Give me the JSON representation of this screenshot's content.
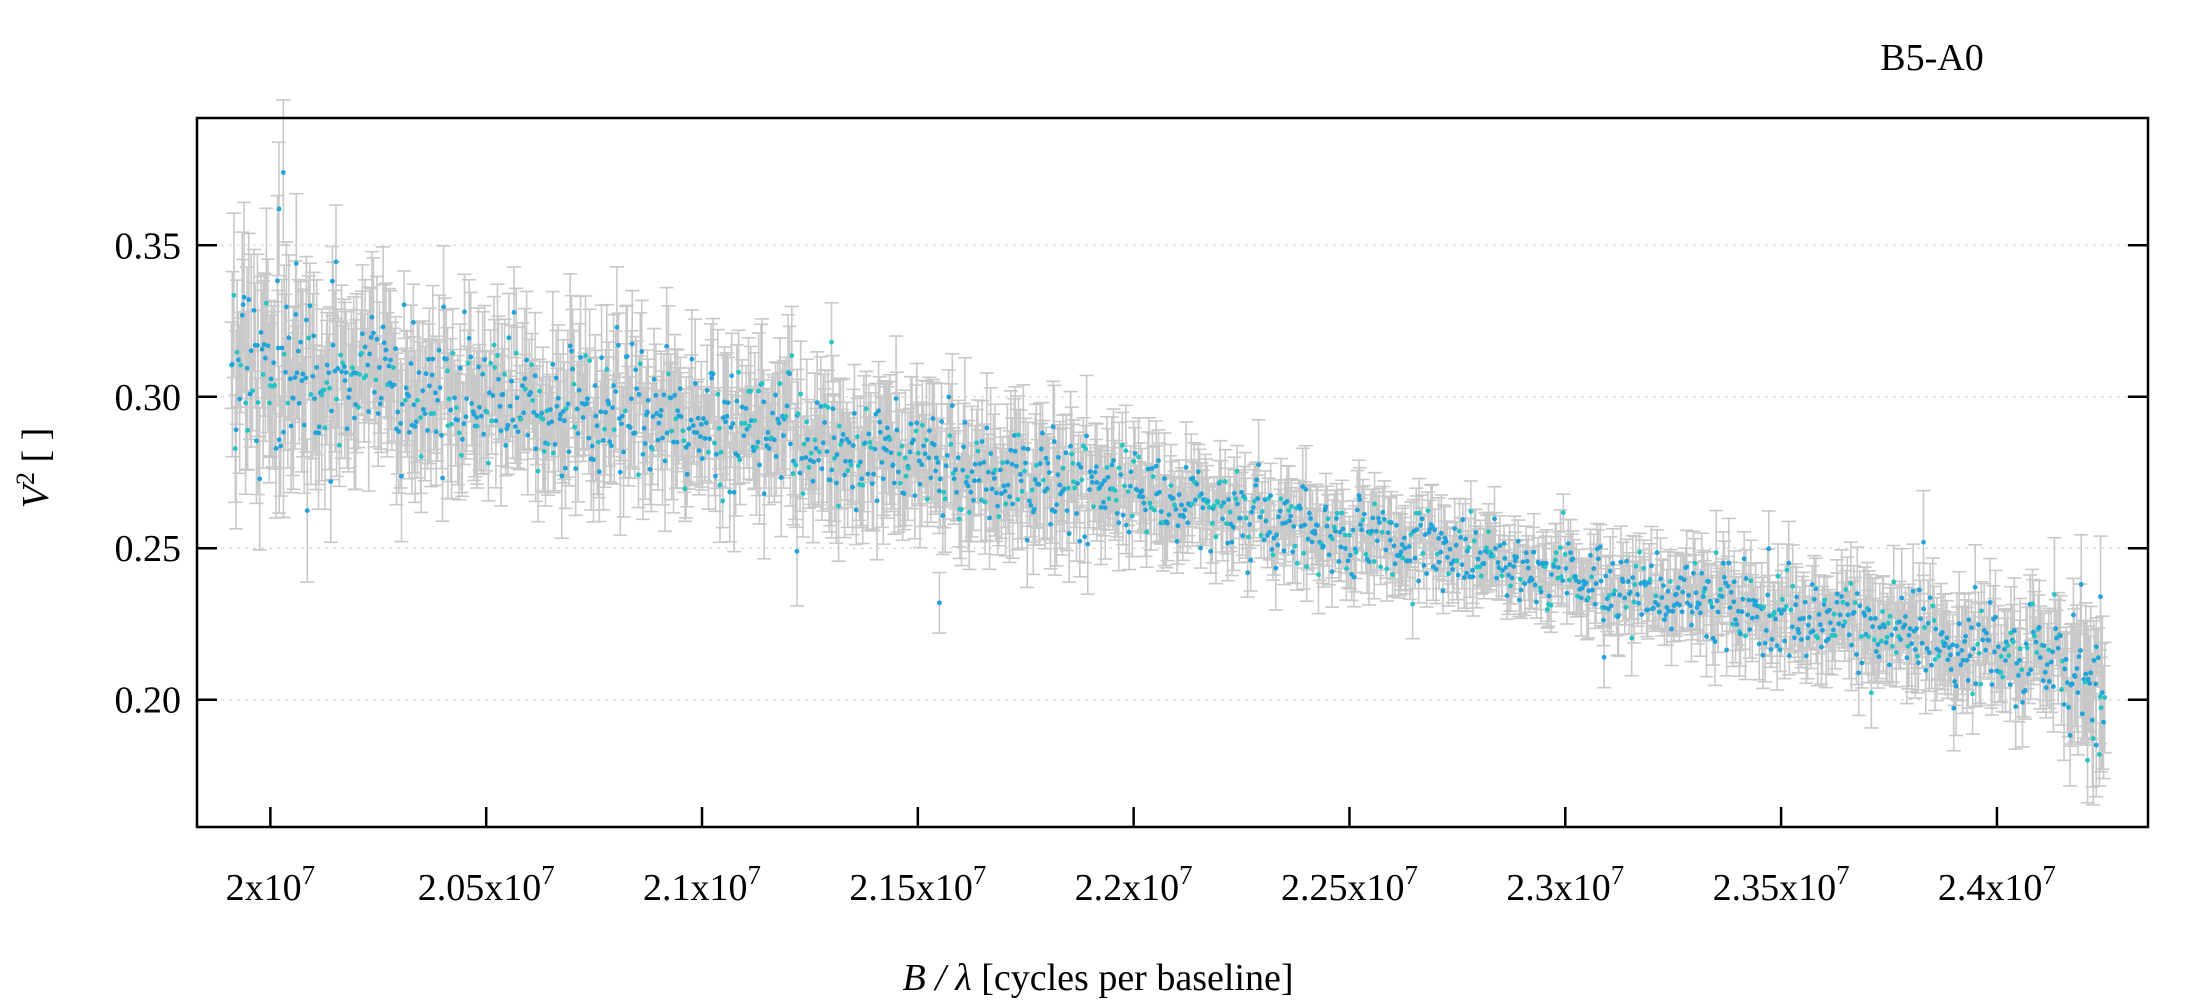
{
  "chart_data": {
    "type": "scatter",
    "title": "B5-A0",
    "xlabel_var": "B / λ",
    "xlabel_unit": " [cycles per baseline]",
    "ylabel_var": "V",
    "ylabel_sup": "2",
    "ylabel_unit": " [ ]",
    "xlim": [
      19830000,
      24350000
    ],
    "ylim": [
      0.158,
      0.392
    ],
    "x_ticks": [
      {
        "value": 20000000,
        "mant": "2x10",
        "exp": "7"
      },
      {
        "value": 20500000,
        "mant": "2.05x10",
        "exp": "7"
      },
      {
        "value": 21000000,
        "mant": "2.1x10",
        "exp": "7"
      },
      {
        "value": 21500000,
        "mant": "2.15x10",
        "exp": "7"
      },
      {
        "value": 22000000,
        "mant": "2.2x10",
        "exp": "7"
      },
      {
        "value": 22500000,
        "mant": "2.25x10",
        "exp": "7"
      },
      {
        "value": 23000000,
        "mant": "2.3x10",
        "exp": "7"
      },
      {
        "value": 23500000,
        "mant": "2.35x10",
        "exp": "7"
      },
      {
        "value": 24000000,
        "mant": "2.4x10",
        "exp": "7"
      }
    ],
    "y_ticks": [
      {
        "value": 0.2,
        "label": "0.20"
      },
      {
        "value": 0.25,
        "label": "0.25"
      },
      {
        "value": 0.3,
        "label": "0.30"
      },
      {
        "value": 0.35,
        "label": "0.35"
      }
    ],
    "grid": true,
    "point_color": "#1fa3d9",
    "point_color_alt": "#22c4c4",
    "errorbar_color": "#c8c8c8",
    "trend": {
      "x": [
        19900000,
        20100000,
        20500000,
        21000000,
        21500000,
        22000000,
        22500000,
        23000000,
        23500000,
        24000000,
        24250000
      ],
      "y": [
        0.31,
        0.308,
        0.3,
        0.29,
        0.279,
        0.268,
        0.254,
        0.241,
        0.228,
        0.216,
        0.205
      ]
    },
    "scatter_sd": {
      "x": [
        19900000,
        20300000,
        21000000,
        21800000,
        22100000,
        23000000,
        23600000,
        24100000,
        24250000
      ],
      "sd": [
        0.014,
        0.011,
        0.01,
        0.009,
        0.007,
        0.006,
        0.007,
        0.008,
        0.011
      ]
    },
    "error_sd": {
      "x": [
        19900000,
        20300000,
        21000000,
        21800000,
        22100000,
        23000000,
        23600000,
        24100000,
        24250000
      ],
      "err": [
        0.024,
        0.018,
        0.016,
        0.015,
        0.011,
        0.009,
        0.011,
        0.013,
        0.018
      ]
    },
    "n_points": 1600,
    "highlights": [
      {
        "x": 20030000,
        "y": 0.374,
        "err": 0.024
      },
      {
        "x": 20020000,
        "y": 0.362,
        "err": 0.022
      },
      {
        "x": 20060000,
        "y": 0.344,
        "err": 0.023
      },
      {
        "x": 20140000,
        "y": 0.272,
        "err": 0.02
      },
      {
        "x": 21220000,
        "y": 0.249,
        "err": 0.018
      },
      {
        "x": 21550000,
        "y": 0.232,
        "err": 0.01
      },
      {
        "x": 23090000,
        "y": 0.214,
        "err": 0.01
      },
      {
        "x": 23830000,
        "y": 0.252,
        "err": 0.017
      },
      {
        "x": 24210000,
        "y": 0.18,
        "err": 0.014
      },
      {
        "x": 24230000,
        "y": 0.185,
        "err": 0.017
      },
      {
        "x": 24240000,
        "y": 0.234,
        "err": 0.02
      },
      {
        "x": 21300000,
        "y": 0.318,
        "err": 0.013
      }
    ]
  }
}
